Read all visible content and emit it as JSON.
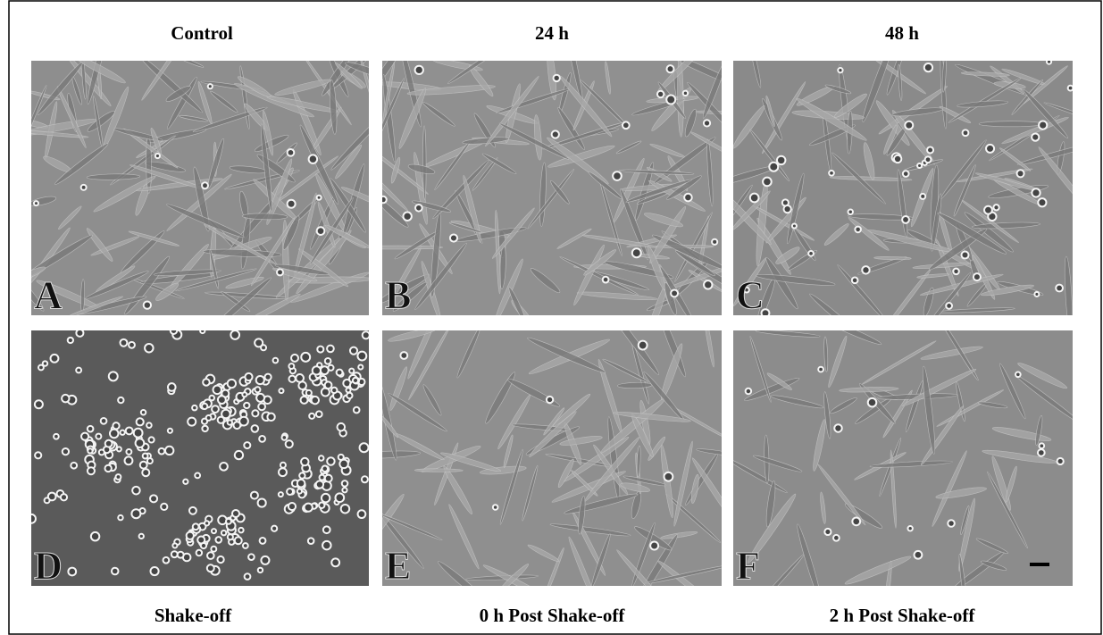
{
  "column_headers": [
    "Control",
    "24 h",
    "48 h"
  ],
  "panels": [
    {
      "letter": "A"
    },
    {
      "letter": "B"
    },
    {
      "letter": "C"
    },
    {
      "letter": "D"
    },
    {
      "letter": "E"
    },
    {
      "letter": "F"
    }
  ],
  "bottom_labels": [
    "Shake-off",
    "0 h Post Shake-off",
    "2 h Post Shake-off"
  ]
}
